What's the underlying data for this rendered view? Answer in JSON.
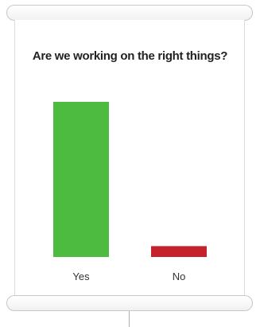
{
  "chart_data": {
    "type": "bar",
    "title": "Are we working on the right things?",
    "categories": [
      "Yes",
      "No"
    ],
    "values": [
      100,
      7
    ],
    "colors": [
      "#4cbb3f",
      "#c4232b"
    ],
    "ylim": [
      0,
      100
    ],
    "grid": false,
    "legend": "none"
  }
}
